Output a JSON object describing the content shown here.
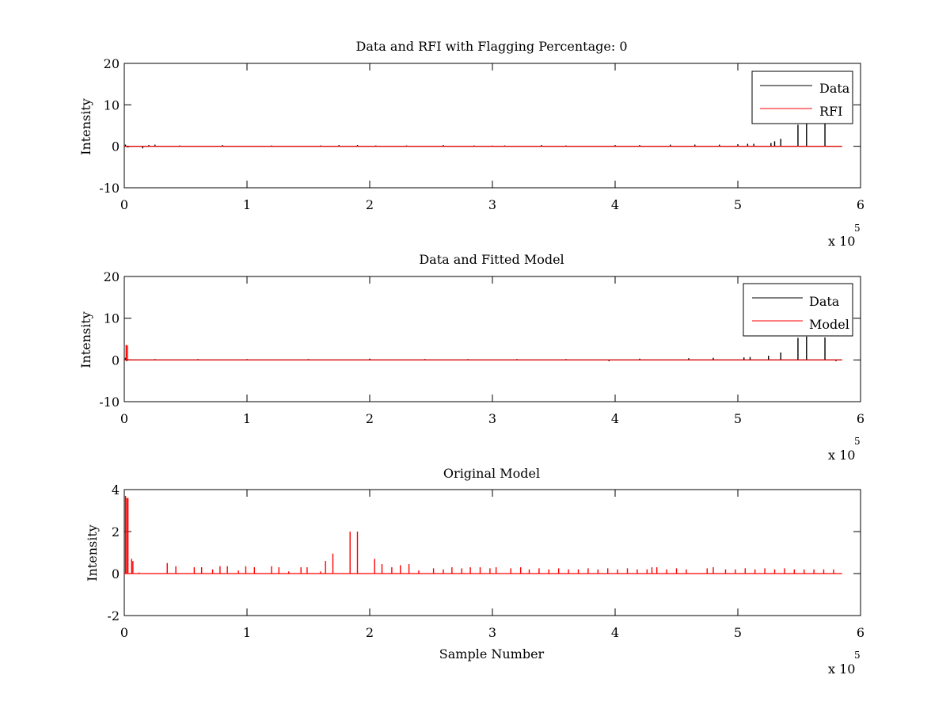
{
  "figure": {
    "background": "#ffffff"
  },
  "chart_data": [
    {
      "type": "line",
      "title": "Data and RFI with Flagging Percentage: 0",
      "xlabel": "",
      "ylabel": "Intensity",
      "xlim": [
        0,
        600000
      ],
      "ylim": [
        -10,
        20
      ],
      "xticks": [
        0,
        1,
        2,
        3,
        4,
        5,
        6
      ],
      "yticks": [
        -10,
        0,
        10,
        20
      ],
      "x_multiplier": "x 10",
      "x_exponent": "5",
      "grid": false,
      "legend_position": "top-right",
      "series": [
        {
          "name": "Data",
          "color": "#000000",
          "baseline": 0,
          "spikes": [
            [
              1000,
              0.4
            ],
            [
              3000,
              -0.3
            ],
            [
              15000,
              -0.5
            ],
            [
              20000,
              0.3
            ],
            [
              25000,
              0.4
            ],
            [
              45000,
              0.2
            ],
            [
              80000,
              0.3
            ],
            [
              120000,
              0.2
            ],
            [
              160000,
              0.2
            ],
            [
              175000,
              0.3
            ],
            [
              190000,
              0.3
            ],
            [
              205000,
              0.2
            ],
            [
              230000,
              0.2
            ],
            [
              260000,
              0.3
            ],
            [
              285000,
              0.2
            ],
            [
              310000,
              0.2
            ],
            [
              340000,
              0.3
            ],
            [
              360000,
              0.2
            ],
            [
              400000,
              0.3
            ],
            [
              420000,
              0.3
            ],
            [
              445000,
              0.4
            ],
            [
              465000,
              0.4
            ],
            [
              485000,
              0.4
            ],
            [
              500000,
              0.5
            ],
            [
              508000,
              0.6
            ],
            [
              513000,
              0.6
            ],
            [
              527000,
              0.8
            ],
            [
              530000,
              1.2
            ],
            [
              535000,
              1.8
            ],
            [
              549000,
              5.2
            ],
            [
              556000,
              5.8
            ],
            [
              571000,
              5.5
            ]
          ]
        },
        {
          "name": "RFI",
          "color": "#ff0000",
          "baseline": 0,
          "spikes": [
            [
              300000,
              0.2
            ],
            [
              301000,
              0.1
            ]
          ]
        }
      ]
    },
    {
      "type": "line",
      "title": "Data and Fitted Model",
      "xlabel": "",
      "ylabel": "Intensity",
      "xlim": [
        0,
        600000
      ],
      "ylim": [
        -10,
        20
      ],
      "xticks": [
        0,
        1,
        2,
        3,
        4,
        5,
        6
      ],
      "yticks": [
        -10,
        0,
        10,
        20
      ],
      "x_multiplier": "x 10",
      "x_exponent": "5",
      "grid": false,
      "legend_position": "top-right",
      "series": [
        {
          "name": "Data",
          "color": "#000000",
          "baseline": 0,
          "spikes": [
            [
              1000,
              0.5
            ],
            [
              2000,
              -0.3
            ],
            [
              25000,
              0.2
            ],
            [
              60000,
              0.2
            ],
            [
              100000,
              0.2
            ],
            [
              150000,
              0.2
            ],
            [
              200000,
              0.3
            ],
            [
              245000,
              0.2
            ],
            [
              280000,
              0.2
            ],
            [
              320000,
              0.2
            ],
            [
              360000,
              0.2
            ],
            [
              395000,
              -0.3
            ],
            [
              420000,
              0.3
            ],
            [
              460000,
              0.4
            ],
            [
              480000,
              0.5
            ],
            [
              505000,
              0.6
            ],
            [
              510000,
              0.7
            ],
            [
              525000,
              1.0
            ],
            [
              535000,
              1.8
            ],
            [
              549000,
              5.3
            ],
            [
              556000,
              5.6
            ],
            [
              571000,
              5.4
            ],
            [
              580000,
              -0.3
            ]
          ]
        },
        {
          "name": "Model",
          "color": "#ff0000",
          "baseline": 0,
          "spikes": [
            [
              1500,
              3.6
            ],
            [
              2500,
              3.5
            ]
          ]
        }
      ]
    },
    {
      "type": "line",
      "title": "Original Model",
      "xlabel": "Sample Number",
      "ylabel": "Intensity",
      "xlim": [
        0,
        600000
      ],
      "ylim": [
        -2,
        4
      ],
      "xticks": [
        0,
        1,
        2,
        3,
        4,
        5,
        6
      ],
      "yticks": [
        -2,
        0,
        2,
        4
      ],
      "x_multiplier": "x 10",
      "x_exponent": "5",
      "grid": false,
      "series": [
        {
          "color": "#ff0000",
          "baseline": 0,
          "spikes": [
            [
              1000,
              3.7
            ],
            [
              2000,
              3.6
            ],
            [
              3000,
              3.6
            ],
            [
              6000,
              0.7
            ],
            [
              7000,
              0.6
            ],
            [
              12000,
              0.05
            ],
            [
              35000,
              0.5
            ],
            [
              42000,
              0.35
            ],
            [
              57000,
              0.3
            ],
            [
              63000,
              0.3
            ],
            [
              72000,
              0.2
            ],
            [
              78000,
              0.35
            ],
            [
              84000,
              0.35
            ],
            [
              93000,
              0.15
            ],
            [
              99000,
              0.35
            ],
            [
              106000,
              0.3
            ],
            [
              120000,
              0.35
            ],
            [
              126000,
              0.3
            ],
            [
              134000,
              0.1
            ],
            [
              144000,
              0.3
            ],
            [
              149000,
              0.3
            ],
            [
              160000,
              0.1
            ],
            [
              164000,
              0.6
            ],
            [
              170000,
              0.95
            ],
            [
              184000,
              2.0
            ],
            [
              190000,
              2.0
            ],
            [
              204000,
              0.7
            ],
            [
              210000,
              0.45
            ],
            [
              218000,
              0.3
            ],
            [
              225000,
              0.4
            ],
            [
              232000,
              0.45
            ],
            [
              240000,
              0.15
            ],
            [
              252000,
              0.25
            ],
            [
              260000,
              0.2
            ],
            [
              267000,
              0.3
            ],
            [
              275000,
              0.25
            ],
            [
              282000,
              0.3
            ],
            [
              290000,
              0.3
            ],
            [
              298000,
              0.25
            ],
            [
              303000,
              0.3
            ],
            [
              315000,
              0.25
            ],
            [
              323000,
              0.3
            ],
            [
              330000,
              0.2
            ],
            [
              338000,
              0.25
            ],
            [
              346000,
              0.2
            ],
            [
              354000,
              0.25
            ],
            [
              362000,
              0.2
            ],
            [
              370000,
              0.2
            ],
            [
              378000,
              0.25
            ],
            [
              386000,
              0.2
            ],
            [
              394000,
              0.25
            ],
            [
              402000,
              0.2
            ],
            [
              410000,
              0.25
            ],
            [
              418000,
              0.2
            ],
            [
              426000,
              0.2
            ],
            [
              430000,
              0.3
            ],
            [
              434000,
              0.3
            ],
            [
              442000,
              0.2
            ],
            [
              450000,
              0.25
            ],
            [
              458000,
              0.2
            ],
            [
              475000,
              0.25
            ],
            [
              480000,
              0.3
            ],
            [
              490000,
              0.2
            ],
            [
              498000,
              0.2
            ],
            [
              506000,
              0.25
            ],
            [
              514000,
              0.2
            ],
            [
              522000,
              0.25
            ],
            [
              530000,
              0.2
            ],
            [
              538000,
              0.25
            ],
            [
              546000,
              0.2
            ],
            [
              554000,
              0.2
            ],
            [
              562000,
              0.2
            ],
            [
              570000,
              0.2
            ],
            [
              578000,
              0.2
            ]
          ]
        }
      ]
    }
  ]
}
